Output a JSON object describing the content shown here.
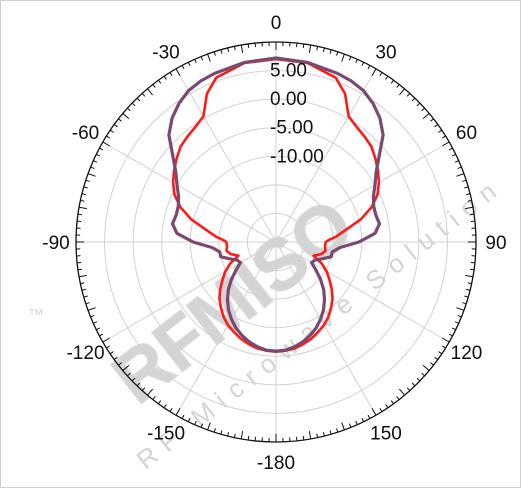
{
  "chart_data": {
    "type": "polar-line",
    "theta_direction": "clockwise",
    "theta_zero": "top",
    "theta_tick_labels": [
      "0",
      "30",
      "60",
      "90",
      "120",
      "150",
      "-180",
      "-150",
      "-120",
      "-90",
      "-60",
      "-30"
    ],
    "theta_ticks": [
      0,
      30,
      60,
      90,
      120,
      150,
      180,
      210,
      240,
      270,
      300,
      330
    ],
    "r_tick_labels": [
      "5.00",
      "0.00",
      "-5.00",
      "-10.00"
    ],
    "r_ticks": [
      5,
      0,
      -5,
      -10
    ],
    "r_range": [
      -25,
      10
    ],
    "grid": true,
    "series": [
      {
        "color": "#ff1a1a",
        "points": [
          [
            0,
            7
          ],
          [
            10,
            6.8
          ],
          [
            20,
            5.6
          ],
          [
            25,
            3.6
          ],
          [
            30,
            0.4
          ],
          [
            35,
            -0.4
          ],
          [
            40,
            -0.9
          ],
          [
            45,
            -1.4
          ],
          [
            50,
            -2.3
          ],
          [
            55,
            -3.2
          ],
          [
            60,
            -4.2
          ],
          [
            65,
            -5.4
          ],
          [
            70,
            -7.2
          ],
          [
            75,
            -9.6
          ],
          [
            80,
            -12.5
          ],
          [
            85,
            -14.5
          ],
          [
            88,
            -15.8
          ],
          [
            90,
            -16.3
          ],
          [
            95,
            -16.4
          ],
          [
            100,
            -16.2
          ],
          [
            105,
            -16.8
          ],
          [
            110,
            -18.0
          ],
          [
            115,
            -16.2
          ],
          [
            120,
            -14.8
          ],
          [
            125,
            -13.6
          ],
          [
            130,
            -12.3
          ],
          [
            135,
            -11.0
          ],
          [
            140,
            -10.0
          ],
          [
            145,
            -9.0
          ],
          [
            150,
            -8.2
          ],
          [
            155,
            -7.6
          ],
          [
            160,
            -7.0
          ],
          [
            165,
            -6.5
          ],
          [
            170,
            -6.1
          ],
          [
            175,
            -5.9
          ],
          [
            180,
            -5.8
          ],
          [
            185,
            -5.9
          ],
          [
            190,
            -6.1
          ],
          [
            195,
            -6.5
          ],
          [
            200,
            -7.0
          ],
          [
            205,
            -7.6
          ],
          [
            210,
            -8.2
          ],
          [
            215,
            -9.0
          ],
          [
            220,
            -10.0
          ],
          [
            225,
            -11.0
          ],
          [
            230,
            -12.3
          ],
          [
            235,
            -13.6
          ],
          [
            240,
            -14.8
          ],
          [
            245,
            -16.2
          ],
          [
            250,
            -18.0
          ],
          [
            255,
            -16.8
          ],
          [
            260,
            -16.2
          ],
          [
            265,
            -16.4
          ],
          [
            270,
            -16.3
          ],
          [
            272,
            -15.8
          ],
          [
            275,
            -14.5
          ],
          [
            280,
            -12.5
          ],
          [
            285,
            -9.6
          ],
          [
            290,
            -7.2
          ],
          [
            295,
            -5.4
          ],
          [
            300,
            -4.2
          ],
          [
            305,
            -3.2
          ],
          [
            310,
            -2.3
          ],
          [
            315,
            -1.4
          ],
          [
            320,
            -0.9
          ],
          [
            325,
            -0.4
          ],
          [
            330,
            0.4
          ],
          [
            335,
            3.6
          ],
          [
            340,
            5.6
          ],
          [
            350,
            6.8
          ],
          [
            360,
            7
          ]
        ]
      },
      {
        "color": "#7a4a6e",
        "points": [
          [
            0,
            7.2
          ],
          [
            10,
            6.9
          ],
          [
            20,
            6.4
          ],
          [
            25,
            6.1
          ],
          [
            30,
            5.6
          ],
          [
            35,
            4.6
          ],
          [
            40,
            3.3
          ],
          [
            45,
            1.5
          ],
          [
            50,
            -1.4
          ],
          [
            55,
            -3.6
          ],
          [
            60,
            -5.0
          ],
          [
            65,
            -6.2
          ],
          [
            70,
            -6.8
          ],
          [
            75,
            -6.9
          ],
          [
            80,
            -6.6
          ],
          [
            85,
            -7.6
          ],
          [
            90,
            -10.5
          ],
          [
            95,
            -13.8
          ],
          [
            100,
            -15.0
          ],
          [
            105,
            -15.0
          ],
          [
            110,
            -16.4
          ],
          [
            115,
            -17.5
          ],
          [
            120,
            -17.8
          ],
          [
            125,
            -16.5
          ],
          [
            130,
            -14.8
          ],
          [
            135,
            -13.2
          ],
          [
            140,
            -11.8
          ],
          [
            145,
            -10.5
          ],
          [
            150,
            -9.4
          ],
          [
            155,
            -8.4
          ],
          [
            160,
            -7.6
          ],
          [
            165,
            -6.9
          ],
          [
            170,
            -6.4
          ],
          [
            175,
            -6.0
          ],
          [
            180,
            -5.9
          ],
          [
            185,
            -6.0
          ],
          [
            190,
            -6.4
          ],
          [
            195,
            -6.9
          ],
          [
            200,
            -7.6
          ],
          [
            205,
            -8.4
          ],
          [
            210,
            -9.4
          ],
          [
            215,
            -10.5
          ],
          [
            220,
            -11.8
          ],
          [
            225,
            -13.2
          ],
          [
            230,
            -14.8
          ],
          [
            235,
            -16.5
          ],
          [
            240,
            -17.8
          ],
          [
            245,
            -17.5
          ],
          [
            250,
            -16.4
          ],
          [
            255,
            -15.0
          ],
          [
            260,
            -15.0
          ],
          [
            265,
            -13.8
          ],
          [
            270,
            -10.5
          ],
          [
            275,
            -7.6
          ],
          [
            280,
            -6.6
          ],
          [
            285,
            -6.9
          ],
          [
            290,
            -6.8
          ],
          [
            295,
            -6.2
          ],
          [
            300,
            -5.0
          ],
          [
            305,
            -3.6
          ],
          [
            310,
            -1.4
          ],
          [
            315,
            1.5
          ],
          [
            320,
            3.3
          ],
          [
            325,
            4.6
          ],
          [
            330,
            5.6
          ],
          [
            335,
            6.1
          ],
          [
            340,
            6.4
          ],
          [
            350,
            6.9
          ],
          [
            360,
            7.2
          ]
        ]
      }
    ]
  },
  "watermark": {
    "line1": "RFMISO",
    "line2": "RF Microwave Solution",
    "mark": "™"
  }
}
